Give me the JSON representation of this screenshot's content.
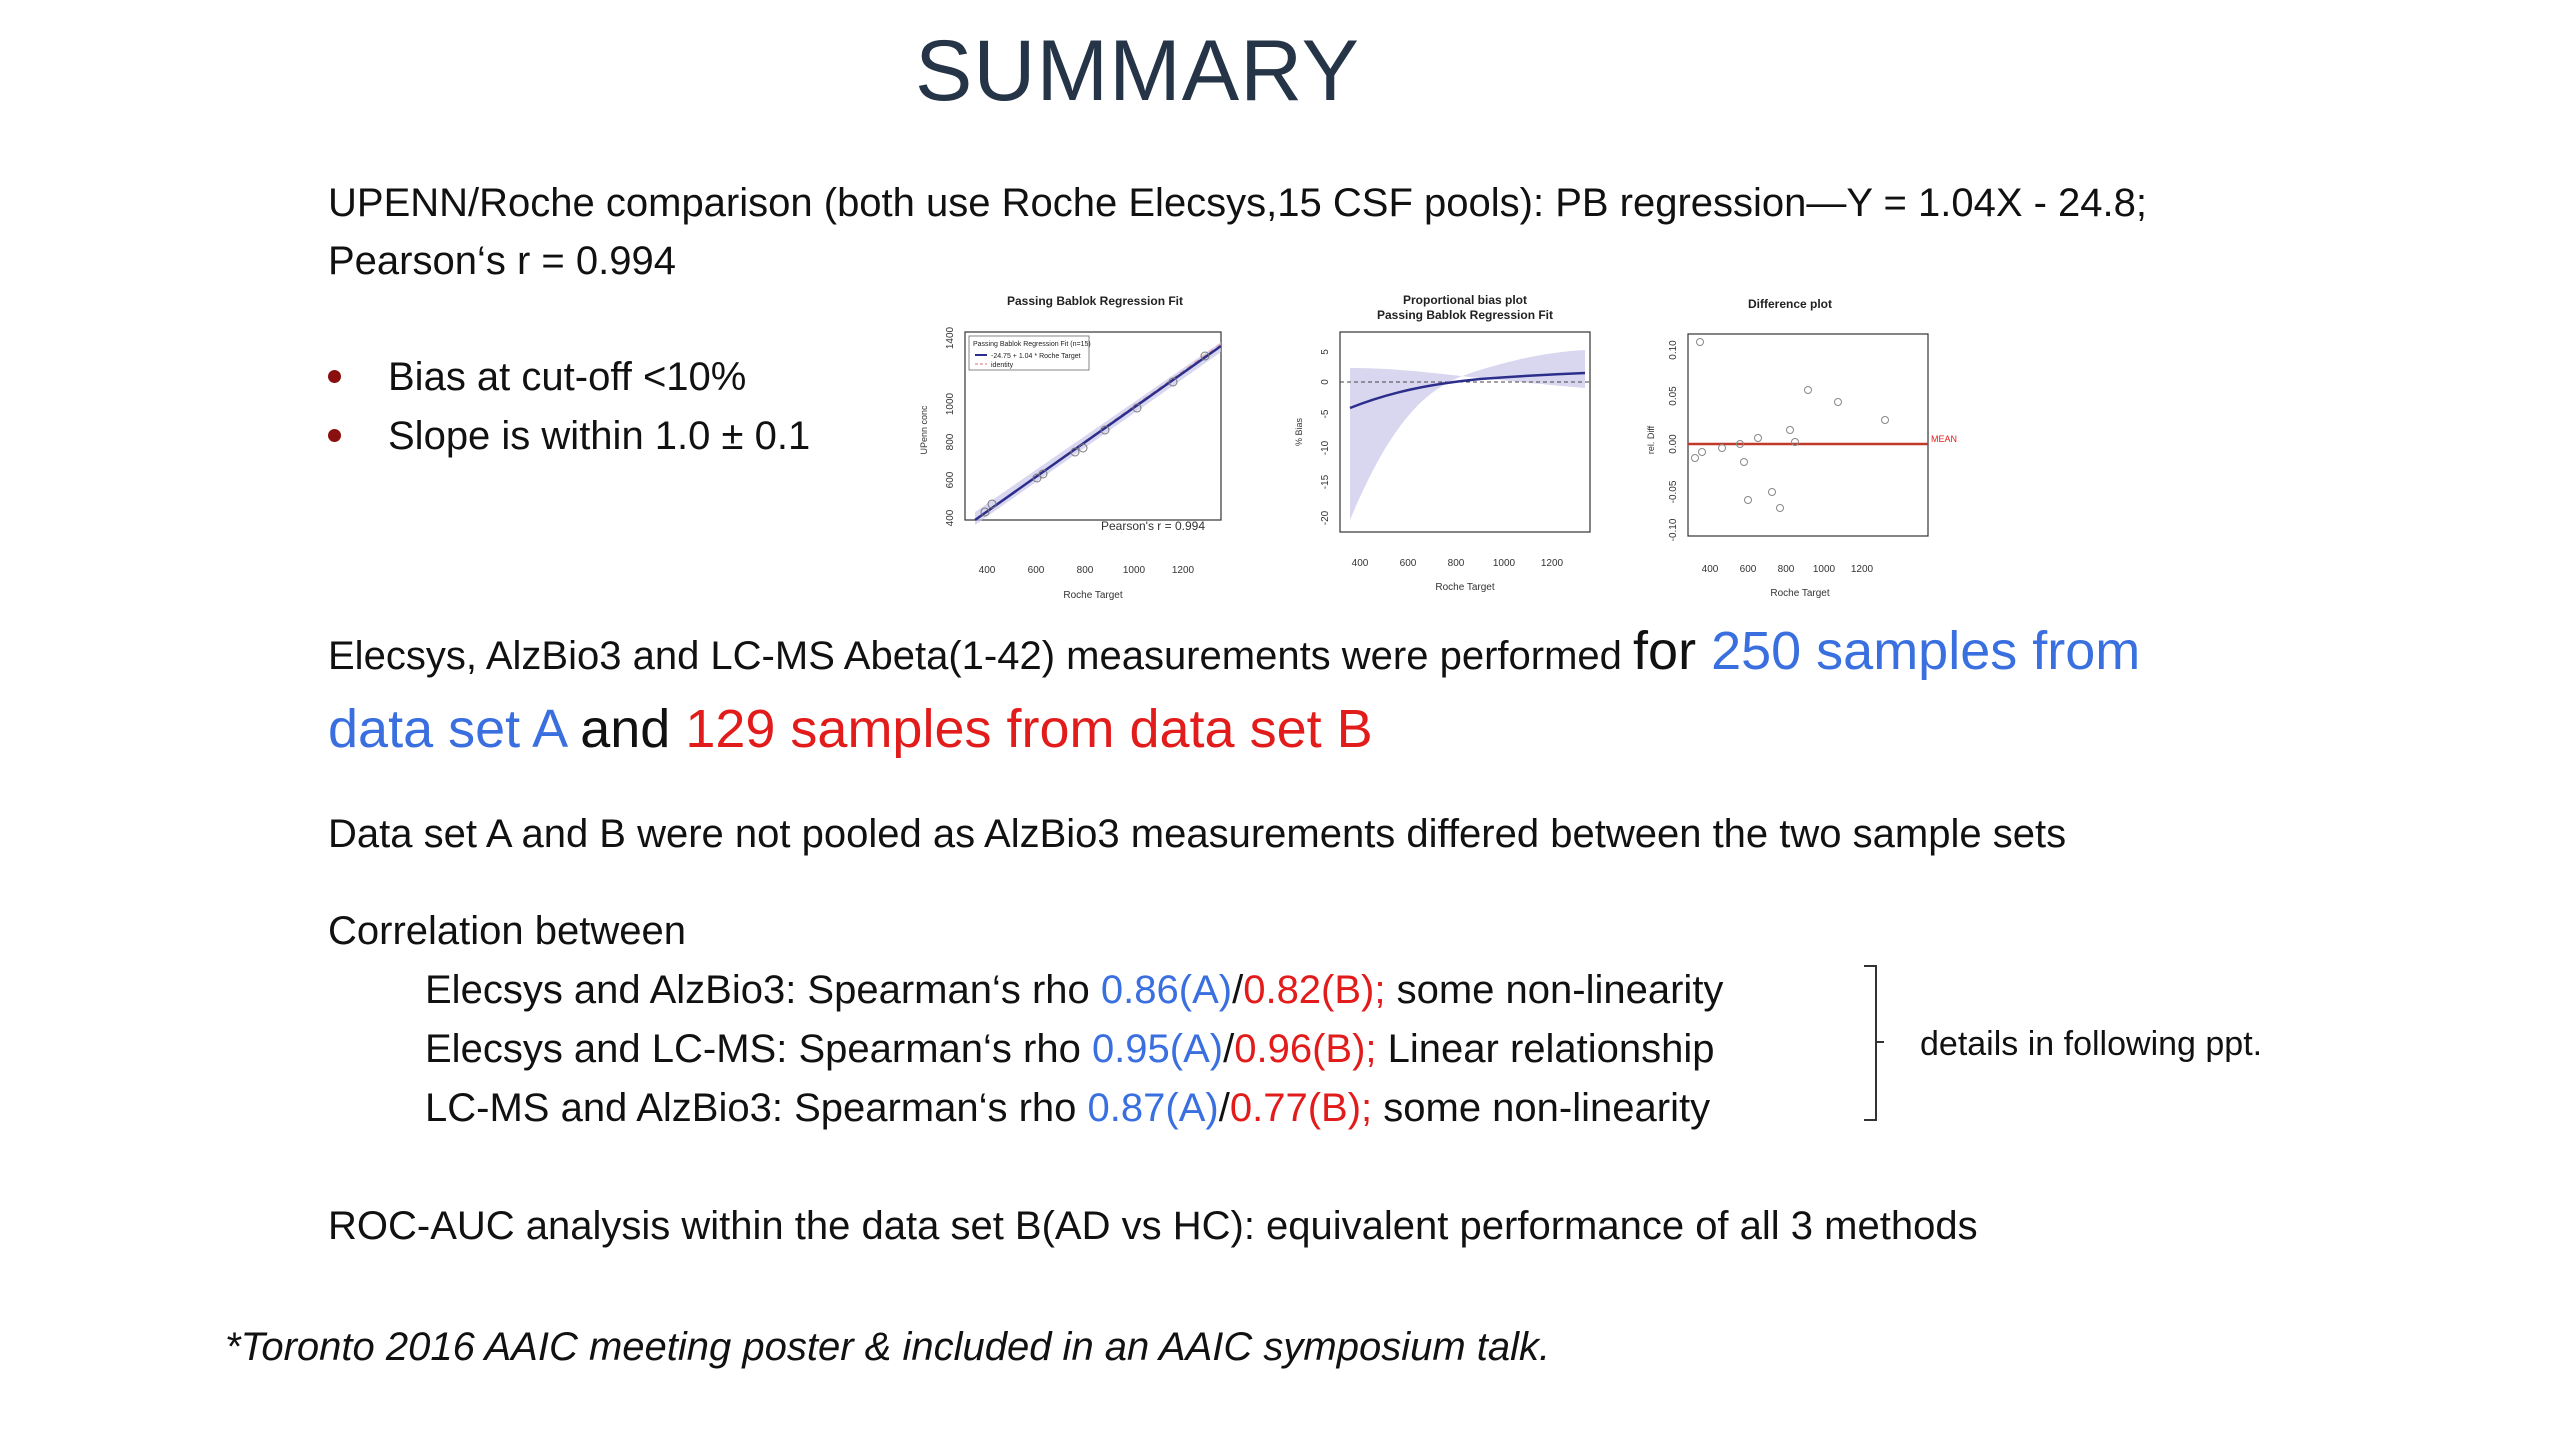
{
  "title": "SUMMARY",
  "intro": {
    "line1": "UPENN/Roche comparison (both use Roche Elecsys,15 CSF pools): PB regression—Y = 1.04X - 24.8;",
    "line2": "Pearson‘s r = 0.994"
  },
  "bullets": [
    "Bias at cut-off <10%",
    "Slope is within 1.0 ± 0.1"
  ],
  "measurements": {
    "part1": "Elecsys, AlzBio3 and LC-MS Abeta(1-42) measurements were performed ",
    "part2": "for ",
    "part3_blue_a": "250 samples from",
    "part3_blue_b": "data set A",
    "part4": " and ",
    "part5_red": "129 samples from data set B"
  },
  "not_pooled": "Data set A and B were not pooled as AlzBio3 measurements differed between the two sample sets",
  "correlation": {
    "heading": "Correlation between",
    "rows": [
      {
        "pair": "Elecsys and AlzBio3:  Spearman‘s rho ",
        "a": "0.86(A)",
        "sep": "/",
        "b": "0.82(B);",
        "note": " some non-linearity"
      },
      {
        "pair": "Elecsys and LC-MS:  Spearman‘s rho ",
        "a": "0.95(A)",
        "sep": "/",
        "b": "0.96(B);",
        "note": "  Linear relationship"
      },
      {
        "pair": "LC-MS and AlzBio3:  Spearman‘s rho ",
        "a": "0.87(A)",
        "sep": "/",
        "b": "0.77(B);",
        "note": " some non-linearity"
      }
    ],
    "details": "details in following ppt."
  },
  "roc": "ROC-AUC analysis within the data set B(AD vs HC): equivalent performance of all 3 methods",
  "footnote": "*Toronto 2016 AAIC meeting poster & included in an AAIC symposium talk.",
  "plots": {
    "plot1": {
      "title": "Passing Bablok Regression Fit",
      "xlabel": "Roche Target",
      "ylabel": "UPenn conc",
      "xticks": [
        "400",
        "600",
        "800",
        "1000",
        "1200"
      ],
      "yticks": [
        "400",
        "600",
        "800",
        "1000",
        "1400"
      ],
      "legend_title": "Passing Bablok Regression Fit (n=15)",
      "legend_line": "-24.75 + 1.04 * Roche Target",
      "legend_identity": "identity",
      "annotation": "Pearson's r = 0.994"
    },
    "plot2": {
      "title1": "Proportional bias plot",
      "title2": "Passing Bablok Regression Fit",
      "xlabel": "Roche Target",
      "ylabel": "% Bias",
      "xticks": [
        "400",
        "600",
        "800",
        "1000",
        "1200"
      ],
      "yticks": [
        "5",
        "0",
        "-5",
        "-10",
        "-15",
        "-20"
      ]
    },
    "plot3": {
      "title": "Difference plot",
      "xlabel": "Roche Target",
      "ylabel": "rel. Diff",
      "xticks": [
        "400",
        "600",
        "800",
        "1000",
        "1200"
      ],
      "yticks": [
        "0.10",
        "0.05",
        "0.00",
        "-0.05",
        "-0.10"
      ],
      "mean_label": "MEAN",
      "mean_color": "#c0392b"
    }
  },
  "colors": {
    "title": "#253447",
    "blue": "#3a6fe0",
    "red": "#e21b1b",
    "bullet": "#8a1010"
  }
}
